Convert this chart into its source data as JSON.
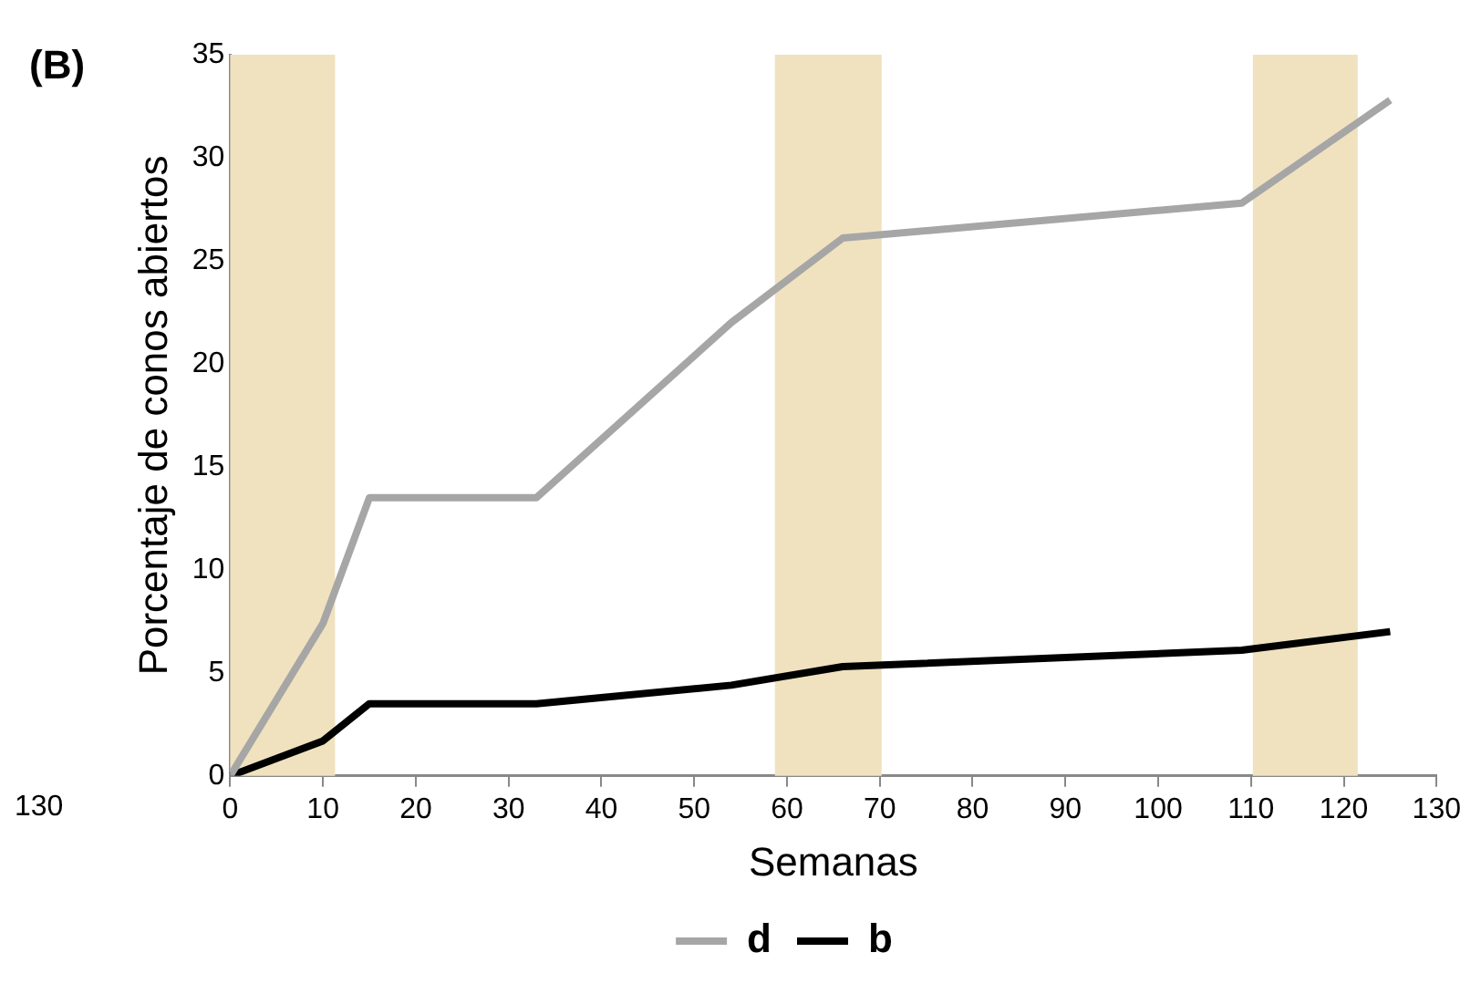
{
  "chart_data": {
    "type": "line",
    "xlabel": "Semanas",
    "ylabel": "Porcentaje de conos abiertos",
    "annotations": [
      "(B)",
      "130"
    ],
    "x": [
      0,
      10,
      15,
      33,
      54,
      66,
      109,
      125
    ],
    "series": [
      {
        "name": "d",
        "color": "#a6a6a6",
        "values": [
          0,
          7.4,
          13.5,
          13.5,
          22,
          26.1,
          27.8,
          32.8
        ]
      },
      {
        "name": "b",
        "color": "#000000",
        "values": [
          0,
          1.7,
          3.5,
          3.5,
          4.4,
          5.3,
          6.1,
          7.0
        ]
      }
    ],
    "bands": [
      {
        "axis": "x",
        "from": 0,
        "to": 11.3,
        "color": "#f0e2bf"
      },
      {
        "axis": "x",
        "from": 58.7,
        "to": 70.2,
        "color": "#f0e2bf"
      },
      {
        "axis": "x",
        "from": 110.2,
        "to": 121.5,
        "color": "#f0e2bf"
      }
    ],
    "xlim": [
      0,
      130
    ],
    "xticks": [
      0,
      10,
      20,
      30,
      40,
      50,
      60,
      70,
      80,
      90,
      100,
      110,
      120,
      130
    ],
    "ylim": [
      0,
      35
    ],
    "yticks": [
      0,
      5,
      10,
      15,
      20,
      25,
      30,
      35
    ],
    "grid": false,
    "legend": "bottom",
    "marker": "none",
    "line_style": "solid"
  }
}
